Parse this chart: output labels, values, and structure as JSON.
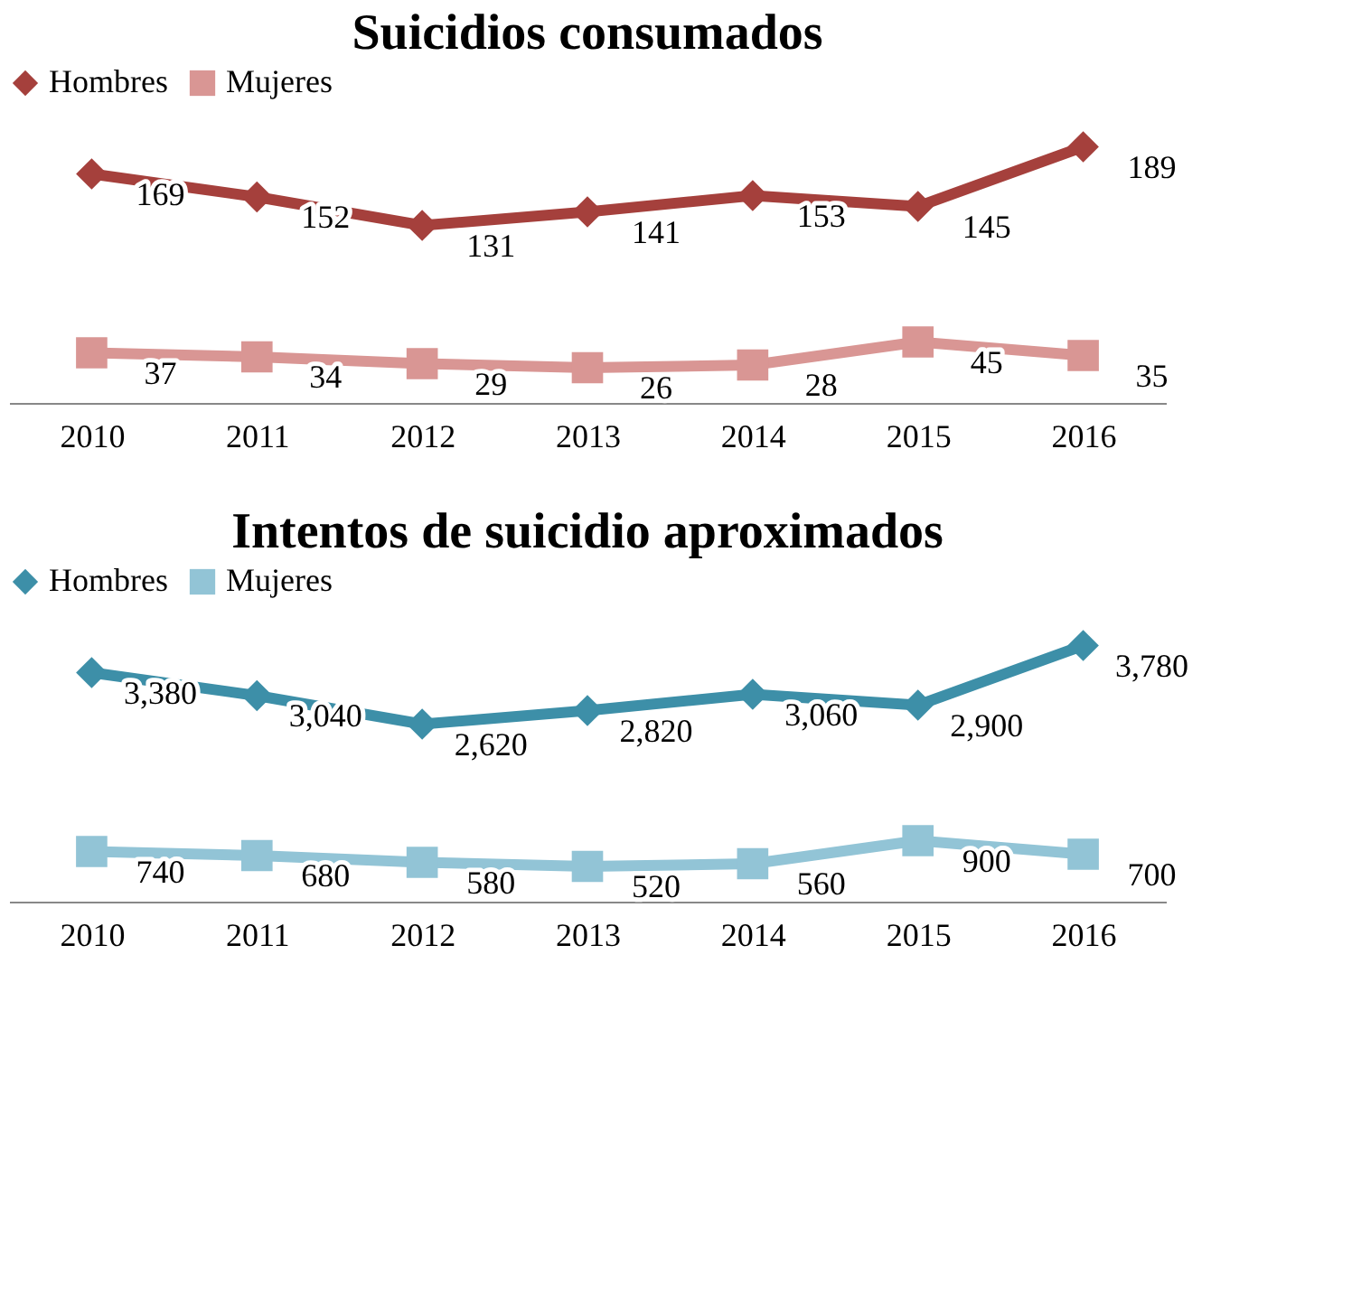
{
  "chart_data": [
    {
      "type": "line",
      "title": "Suicidios consumados",
      "categories": [
        "2010",
        "2011",
        "2012",
        "2013",
        "2014",
        "2015",
        "2016"
      ],
      "data_labels": true,
      "legend": "top",
      "grid": false,
      "series": [
        {
          "name": "Hombres",
          "color": "#a5403c",
          "marker": "diamond",
          "values": [
            169,
            152,
            131,
            141,
            153,
            145,
            189
          ]
        },
        {
          "name": "Mujeres",
          "color": "#d99694",
          "marker": "square",
          "values": [
            37,
            34,
            29,
            26,
            28,
            45,
            35
          ]
        }
      ]
    },
    {
      "type": "line",
      "title": "Intentos de suicidio aproximados",
      "categories": [
        "2010",
        "2011",
        "2012",
        "2013",
        "2014",
        "2015",
        "2016"
      ],
      "legend": "top",
      "grid": false,
      "series": [
        {
          "name": "Hombres",
          "color": "#3d8fa8",
          "marker": "diamond",
          "values": [
            3380,
            3040,
            2620,
            2820,
            3060,
            2900,
            3780
          ],
          "value_labels": [
            "3,380",
            "3,040",
            "2,620",
            "2,820",
            "3,060",
            "2,900",
            "3,780"
          ]
        },
        {
          "name": "Mujeres",
          "color": "#92c4d6",
          "marker": "square",
          "values": [
            740,
            680,
            580,
            520,
            560,
            900,
            700
          ],
          "value_labels": [
            "740",
            "680",
            "580",
            "520",
            "560",
            "900",
            "700"
          ]
        }
      ]
    }
  ]
}
